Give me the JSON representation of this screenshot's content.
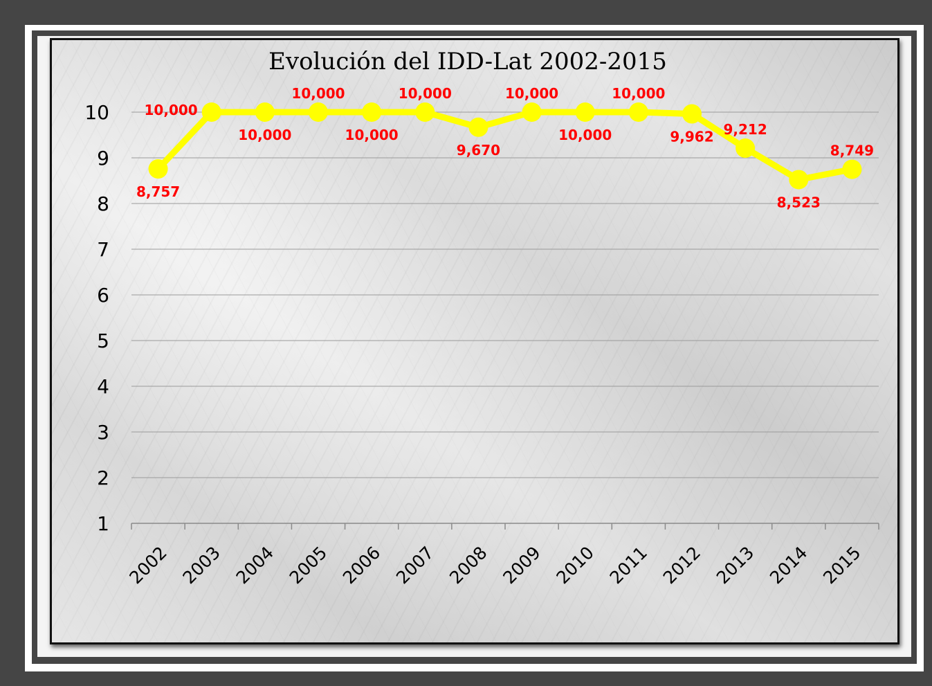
{
  "chart_data": {
    "type": "line",
    "title": "Evolución del IDD-Lat 2002-2015",
    "categories": [
      "2002",
      "2003",
      "2004",
      "2005",
      "2006",
      "2007",
      "2008",
      "2009",
      "2010",
      "2011",
      "2012",
      "2013",
      "2014",
      "2015"
    ],
    "series": [
      {
        "values": [
          8.757,
          10.0,
          10.0,
          10.0,
          10.0,
          10.0,
          9.67,
          10.0,
          10.0,
          10.0,
          9.962,
          9.212,
          8.523,
          8.749
        ],
        "labels": [
          "8,757",
          "10,000",
          "10,000",
          "10,000",
          "10,000",
          "10,000",
          "9,670",
          "10,000",
          "10,000",
          "10,000",
          "9,962",
          "9,212",
          "8,523",
          "8,749"
        ],
        "label_position": [
          "below",
          "left",
          "below",
          "above",
          "below",
          "above",
          "below",
          "above",
          "below",
          "above",
          "below",
          "above",
          "below",
          "above"
        ]
      }
    ],
    "ylim": [
      1,
      10
    ],
    "yticks": [
      "1",
      "2",
      "3",
      "4",
      "5",
      "6",
      "7",
      "8",
      "9",
      "10"
    ],
    "grid": true,
    "xlabel": "",
    "ylabel": "",
    "colors": {
      "line": "#ffff00",
      "marker": "#ffff00",
      "data_label": "#ff0000",
      "gridline": "#9a9a9a",
      "text": "#000000"
    }
  }
}
